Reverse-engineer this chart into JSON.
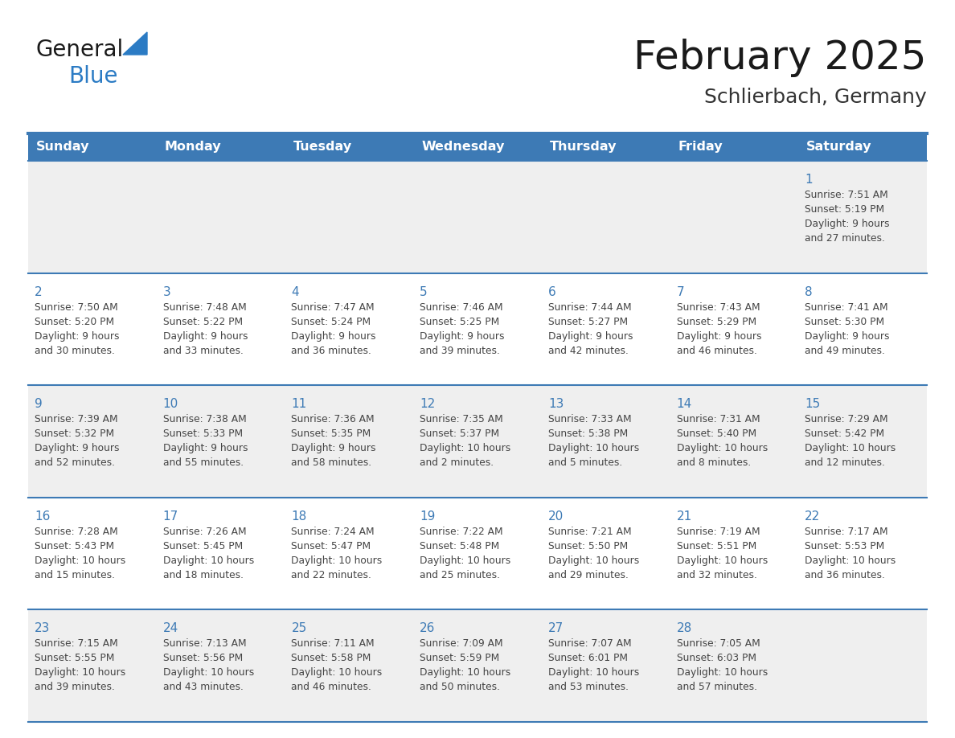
{
  "title": "February 2025",
  "subtitle": "Schlierbach, Germany",
  "days_of_week": [
    "Sunday",
    "Monday",
    "Tuesday",
    "Wednesday",
    "Thursday",
    "Friday",
    "Saturday"
  ],
  "header_bg": "#3d7ab5",
  "header_text": "#ffffff",
  "row_bg_odd": "#efefef",
  "row_bg_even": "#ffffff",
  "cell_border_color": "#3d7ab5",
  "day_number_color": "#3d7ab5",
  "info_text_color": "#444444",
  "title_color": "#1a1a1a",
  "subtitle_color": "#333333",
  "logo_general_color": "#1a1a1a",
  "logo_blue_color": "#2b7bc4",
  "background_color": "#ffffff",
  "calendar": [
    [
      null,
      null,
      null,
      null,
      null,
      null,
      1
    ],
    [
      2,
      3,
      4,
      5,
      6,
      7,
      8
    ],
    [
      9,
      10,
      11,
      12,
      13,
      14,
      15
    ],
    [
      16,
      17,
      18,
      19,
      20,
      21,
      22
    ],
    [
      23,
      24,
      25,
      26,
      27,
      28,
      null
    ]
  ],
  "sun_data": {
    "1": {
      "sunrise": "7:51 AM",
      "sunset": "5:19 PM",
      "daylight": "9 hours and 27 minutes."
    },
    "2": {
      "sunrise": "7:50 AM",
      "sunset": "5:20 PM",
      "daylight": "9 hours and 30 minutes."
    },
    "3": {
      "sunrise": "7:48 AM",
      "sunset": "5:22 PM",
      "daylight": "9 hours and 33 minutes."
    },
    "4": {
      "sunrise": "7:47 AM",
      "sunset": "5:24 PM",
      "daylight": "9 hours and 36 minutes."
    },
    "5": {
      "sunrise": "7:46 AM",
      "sunset": "5:25 PM",
      "daylight": "9 hours and 39 minutes."
    },
    "6": {
      "sunrise": "7:44 AM",
      "sunset": "5:27 PM",
      "daylight": "9 hours and 42 minutes."
    },
    "7": {
      "sunrise": "7:43 AM",
      "sunset": "5:29 PM",
      "daylight": "9 hours and 46 minutes."
    },
    "8": {
      "sunrise": "7:41 AM",
      "sunset": "5:30 PM",
      "daylight": "9 hours and 49 minutes."
    },
    "9": {
      "sunrise": "7:39 AM",
      "sunset": "5:32 PM",
      "daylight": "9 hours and 52 minutes."
    },
    "10": {
      "sunrise": "7:38 AM",
      "sunset": "5:33 PM",
      "daylight": "9 hours and 55 minutes."
    },
    "11": {
      "sunrise": "7:36 AM",
      "sunset": "5:35 PM",
      "daylight": "9 hours and 58 minutes."
    },
    "12": {
      "sunrise": "7:35 AM",
      "sunset": "5:37 PM",
      "daylight": "10 hours and 2 minutes."
    },
    "13": {
      "sunrise": "7:33 AM",
      "sunset": "5:38 PM",
      "daylight": "10 hours and 5 minutes."
    },
    "14": {
      "sunrise": "7:31 AM",
      "sunset": "5:40 PM",
      "daylight": "10 hours and 8 minutes."
    },
    "15": {
      "sunrise": "7:29 AM",
      "sunset": "5:42 PM",
      "daylight": "10 hours and 12 minutes."
    },
    "16": {
      "sunrise": "7:28 AM",
      "sunset": "5:43 PM",
      "daylight": "10 hours and 15 minutes."
    },
    "17": {
      "sunrise": "7:26 AM",
      "sunset": "5:45 PM",
      "daylight": "10 hours and 18 minutes."
    },
    "18": {
      "sunrise": "7:24 AM",
      "sunset": "5:47 PM",
      "daylight": "10 hours and 22 minutes."
    },
    "19": {
      "sunrise": "7:22 AM",
      "sunset": "5:48 PM",
      "daylight": "10 hours and 25 minutes."
    },
    "20": {
      "sunrise": "7:21 AM",
      "sunset": "5:50 PM",
      "daylight": "10 hours and 29 minutes."
    },
    "21": {
      "sunrise": "7:19 AM",
      "sunset": "5:51 PM",
      "daylight": "10 hours and 32 minutes."
    },
    "22": {
      "sunrise": "7:17 AM",
      "sunset": "5:53 PM",
      "daylight": "10 hours and 36 minutes."
    },
    "23": {
      "sunrise": "7:15 AM",
      "sunset": "5:55 PM",
      "daylight": "10 hours and 39 minutes."
    },
    "24": {
      "sunrise": "7:13 AM",
      "sunset": "5:56 PM",
      "daylight": "10 hours and 43 minutes."
    },
    "25": {
      "sunrise": "7:11 AM",
      "sunset": "5:58 PM",
      "daylight": "10 hours and 46 minutes."
    },
    "26": {
      "sunrise": "7:09 AM",
      "sunset": "5:59 PM",
      "daylight": "10 hours and 50 minutes."
    },
    "27": {
      "sunrise": "7:07 AM",
      "sunset": "6:01 PM",
      "daylight": "10 hours and 53 minutes."
    },
    "28": {
      "sunrise": "7:05 AM",
      "sunset": "6:03 PM",
      "daylight": "10 hours and 57 minutes."
    }
  }
}
